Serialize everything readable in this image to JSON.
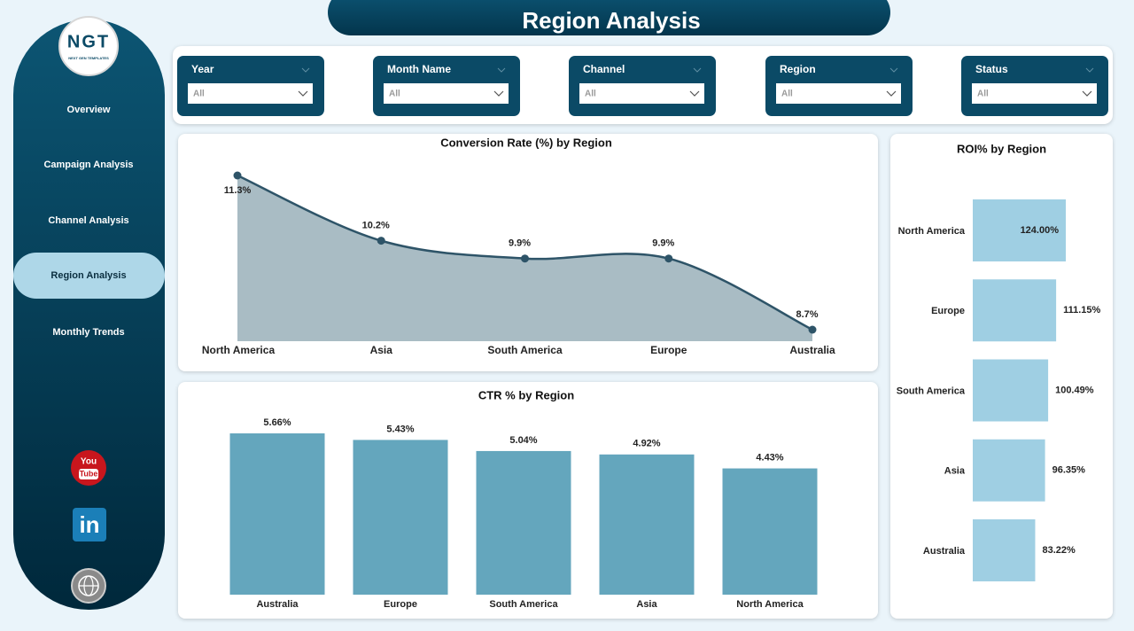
{
  "header": {
    "title": "Region Analysis"
  },
  "logo": {
    "title": "NGT",
    "subtitle": "NEXT GEN TEMPLATES"
  },
  "nav": [
    "Overview",
    "Campaign Analysis",
    "Channel Analysis",
    "Region Analysis",
    "Monthly Trends"
  ],
  "active_nav": 3,
  "social": {
    "youtube": [
      "You",
      "Tube"
    ],
    "linkedin": "in"
  },
  "filters": [
    {
      "label": "Year",
      "value": "All"
    },
    {
      "label": "Month Name",
      "value": "All"
    },
    {
      "label": "Channel",
      "value": "All"
    },
    {
      "label": "Region",
      "value": "All"
    },
    {
      "label": "Status",
      "value": "All"
    }
  ],
  "chart_data": [
    {
      "type": "line",
      "title": "Conversion Rate (%) by Region",
      "categories": [
        "North America",
        "Asia",
        "South America",
        "Europe",
        "Australia"
      ],
      "values": [
        11.3,
        10.2,
        9.9,
        9.9,
        8.7
      ],
      "value_labels": [
        "11.3%",
        "10.2%",
        "9.9%",
        "9.9%",
        "8.7%"
      ],
      "color": "#2e5468",
      "area_color": "#a9bcc4"
    },
    {
      "type": "bar",
      "title": "CTR % by Region",
      "categories": [
        "Australia",
        "Europe",
        "South America",
        "Asia",
        "North America"
      ],
      "values": [
        5.66,
        5.43,
        5.04,
        4.92,
        4.43
      ],
      "value_labels": [
        "5.66%",
        "5.43%",
        "5.04%",
        "4.92%",
        "4.43%"
      ],
      "color": "#64a6bd"
    },
    {
      "type": "hbar",
      "title": "ROI% by Region",
      "categories": [
        "North America",
        "Europe",
        "South America",
        "Asia",
        "Australia"
      ],
      "values": [
        124,
        111.15,
        100.49,
        96.35,
        83.22
      ],
      "value_labels": [
        "124.00%",
        "111.15%",
        "100.49%",
        "96.35%",
        "83.22%"
      ],
      "color": "#9fcfe3"
    }
  ]
}
